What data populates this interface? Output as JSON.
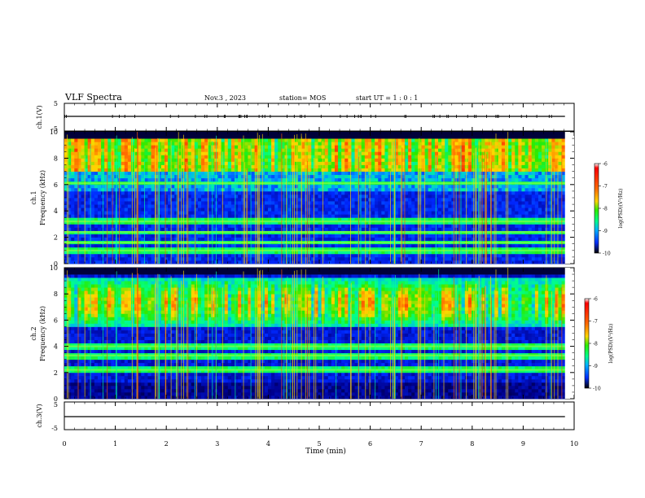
{
  "header": {
    "title": "VLF Spectra",
    "date": "Nov.3 , 2023",
    "station": "station= MOS",
    "start": "start UT = 1 : 0 : 1"
  },
  "colorbar": {
    "label": "log(PSD)(V²/Hz)",
    "ticks": [
      "-6",
      "-7",
      "-8",
      "-9",
      "-10"
    ]
  },
  "chart_data": [
    {
      "type": "line",
      "name": "ch1-waveform",
      "ylabel": "ch.1(V)",
      "ylim": [
        -5,
        5
      ],
      "yticks": [
        "5",
        "-5"
      ],
      "x": [
        0,
        9.82
      ],
      "y": [
        0,
        0
      ]
    },
    {
      "type": "heatmap",
      "name": "ch1-spectrogram",
      "ylabel": "ch.1\nFrequency (kHz)",
      "ylim": [
        0,
        10
      ],
      "yticks": [
        "0",
        "2",
        "4",
        "6",
        "8",
        "10"
      ],
      "xlim": [
        0,
        10
      ],
      "colorscale_range": [
        -10,
        -6
      ],
      "horizontal_bands_khz": [
        3.2,
        6.1,
        1.0,
        1.6,
        2.4
      ]
    },
    {
      "type": "heatmap",
      "name": "ch2-spectrogram",
      "ylabel": "ch.2\nFrequency (kHz)",
      "ylim": [
        0,
        10
      ],
      "yticks": [
        "0",
        "2",
        "4",
        "6",
        "8",
        "10"
      ],
      "xlim": [
        0,
        10
      ],
      "colorscale_range": [
        -10,
        -6
      ],
      "horizontal_bands_khz": [
        3.3,
        2.2,
        4.0
      ]
    },
    {
      "type": "line",
      "name": "ch3-waveform",
      "ylabel": "ch.3(V)",
      "ylim": [
        -5,
        5
      ],
      "yticks": [
        "5",
        "-5"
      ],
      "x": [
        0,
        9.82
      ],
      "y": [
        0,
        0
      ]
    }
  ],
  "xaxis": {
    "label": "Time (min)",
    "xlim": [
      0,
      10
    ],
    "ticks": [
      "0",
      "1",
      "2",
      "3",
      "4",
      "5",
      "6",
      "7",
      "8",
      "9",
      "10"
    ]
  }
}
